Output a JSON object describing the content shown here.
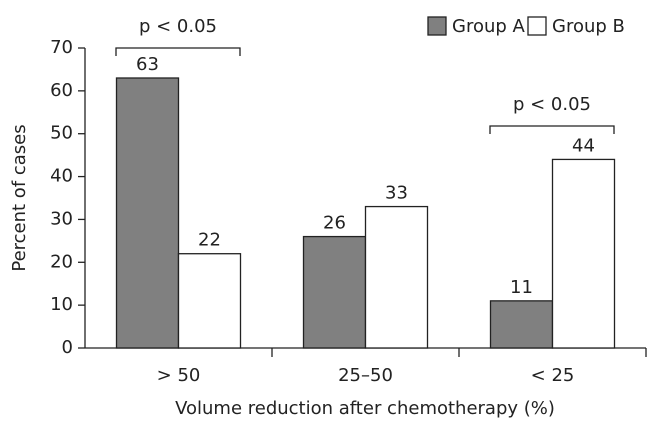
{
  "chart_data": {
    "type": "bar",
    "x_label": "Volume reduction after chemotherapy (%)",
    "y_label": "Percent of cases",
    "categories": [
      "> 50",
      "25–50",
      "< 25"
    ],
    "series": [
      {
        "name": "Group A",
        "color": "#808080",
        "values": [
          63,
          26,
          11
        ]
      },
      {
        "name": "Group B",
        "color": "#ffffff",
        "values": [
          22,
          33,
          44
        ]
      }
    ],
    "ylim": [
      0,
      70
    ],
    "yticks": [
      0,
      10,
      20,
      30,
      40,
      50,
      60,
      70
    ],
    "legend": "top-right",
    "annotations": [
      "p < 0.05",
      "p < 0.05"
    ]
  }
}
